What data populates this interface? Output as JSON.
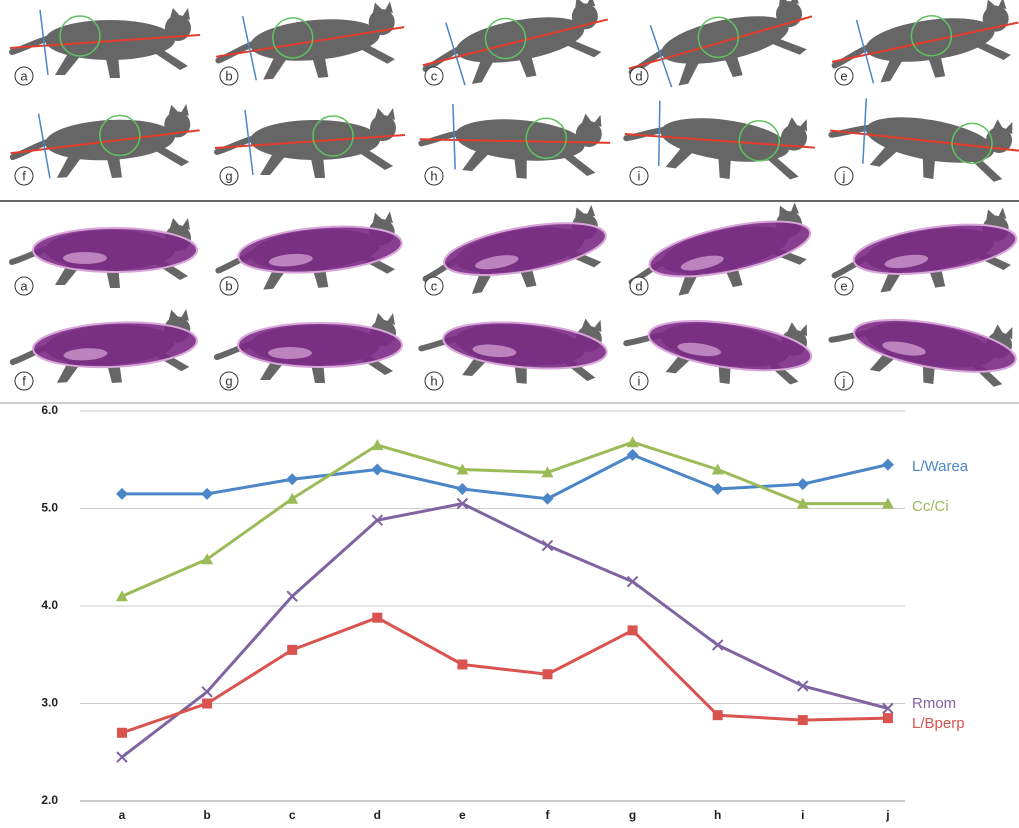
{
  "panels": {
    "top": {
      "labels": [
        "a",
        "b",
        "c",
        "d",
        "e",
        "f",
        "g",
        "h",
        "i",
        "j"
      ]
    },
    "middle": {
      "labels": [
        "a",
        "b",
        "c",
        "d",
        "e",
        "f",
        "g",
        "h",
        "i",
        "j"
      ]
    }
  },
  "chart_data": {
    "type": "line",
    "categories": [
      "a",
      "b",
      "c",
      "d",
      "e",
      "f",
      "g",
      "h",
      "i",
      "j"
    ],
    "ylim": [
      2,
      6
    ],
    "yticks": [
      {
        "value": 2,
        "label": "2.0"
      },
      {
        "value": 3,
        "label": "3.0"
      },
      {
        "value": 4,
        "label": "4.0"
      },
      {
        "value": 5,
        "label": "5.0"
      },
      {
        "value": 6,
        "label": "6.0"
      }
    ],
    "grid": true,
    "series": [
      {
        "name": "L/Warea",
        "color": "#4a86c8",
        "marker": "diamond",
        "values": [
          5.15,
          5.15,
          5.3,
          5.4,
          5.2,
          5.1,
          5.55,
          5.2,
          5.25,
          5.45
        ]
      },
      {
        "name": "Cc/Ci",
        "color": "#9bbb59",
        "marker": "triangle",
        "values": [
          4.1,
          4.48,
          5.1,
          5.65,
          5.4,
          5.37,
          5.68,
          5.4,
          5.05,
          5.05
        ]
      },
      {
        "name": "Rmom",
        "color": "#8064a2",
        "marker": "x",
        "values": [
          2.45,
          3.12,
          4.1,
          4.88,
          5.05,
          4.62,
          4.25,
          3.6,
          3.18,
          2.95
        ]
      },
      {
        "name": "L/Bperp",
        "color": "#d9534f",
        "marker": "square",
        "values": [
          2.7,
          3.0,
          3.55,
          3.88,
          3.4,
          3.3,
          3.75,
          2.88,
          2.83,
          2.85
        ]
      }
    ]
  }
}
